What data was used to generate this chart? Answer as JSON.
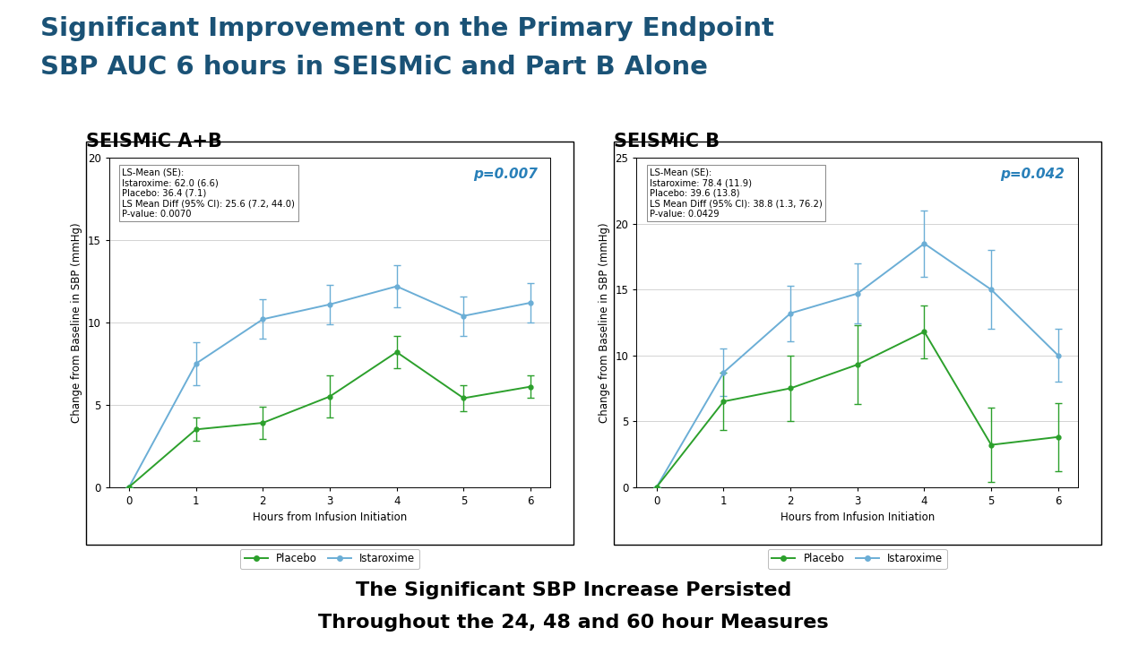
{
  "title_line1": "Significant Improvement on the Primary Endpoint",
  "title_line2": "SBP AUC 6 hours in SEISMiC and Part B Alone",
  "title_color": "#1a5276",
  "title_fontsize": 21,
  "subtitle_left": "SEISMiC A+B",
  "subtitle_right": "SEISMiC B",
  "panel_left": {
    "x": [
      0,
      1,
      2,
      3,
      4,
      5,
      6
    ],
    "istaroxime_y": [
      0,
      7.5,
      10.2,
      11.1,
      12.2,
      10.4,
      11.2
    ],
    "istaroxime_err": [
      0,
      1.3,
      1.2,
      1.2,
      1.3,
      1.2,
      1.2
    ],
    "placebo_y": [
      0,
      3.5,
      3.9,
      5.5,
      8.2,
      5.4,
      6.1
    ],
    "placebo_err": [
      0,
      0.7,
      1.0,
      1.3,
      1.0,
      0.8,
      0.7
    ],
    "ylim": [
      0,
      20
    ],
    "yticks": [
      0,
      5,
      10,
      15,
      20
    ],
    "ylabel": "Change from Baseline in SBP (mmHg)",
    "xlabel": "Hours from Infusion Initiation",
    "pvalue": "p=0.007",
    "annotation": "LS-Mean (SE):\nIstaroxime: 62.0 (6.6)\nPlacebo: 36.4 (7.1)\nLS Mean Diff (95% CI): 25.6 (7.2, 44.0)\nP-value: 0.0070"
  },
  "panel_right": {
    "x": [
      0,
      1,
      2,
      3,
      4,
      5,
      6
    ],
    "istaroxime_y": [
      0,
      8.7,
      13.2,
      14.7,
      18.5,
      15.0,
      10.0
    ],
    "istaroxime_err": [
      0,
      1.8,
      2.1,
      2.3,
      2.5,
      3.0,
      2.0
    ],
    "placebo_y": [
      0,
      6.5,
      7.5,
      9.3,
      11.8,
      3.2,
      3.8
    ],
    "placebo_err": [
      0,
      2.2,
      2.5,
      3.0,
      2.0,
      2.8,
      2.6
    ],
    "ylim": [
      0,
      25
    ],
    "yticks": [
      0,
      5,
      10,
      15,
      20,
      25
    ],
    "ylabel": "Change from Baseline in SBP (mmHg)",
    "xlabel": "Hours from Infusion Initiation",
    "pvalue": "p=0.042",
    "annotation": "LS-Mean (SE):\nIstaroxime: 78.4 (11.9)\nPlacebo: 39.6 (13.8)\nLS Mean Diff (95% CI): 38.8 (1.3, 76.2)\nP-value: 0.0429"
  },
  "istaroxime_color": "#6baed6",
  "placebo_color": "#2ca02c",
  "pvalue_color": "#2980b9",
  "bottom_text_line1": "The Significant SBP Increase Persisted",
  "bottom_text_line2": "Throughout the 24, 48 and 60 hour Measures",
  "bottom_bg_color": "#d6eaf8",
  "top_bar_color": "#8db04a"
}
